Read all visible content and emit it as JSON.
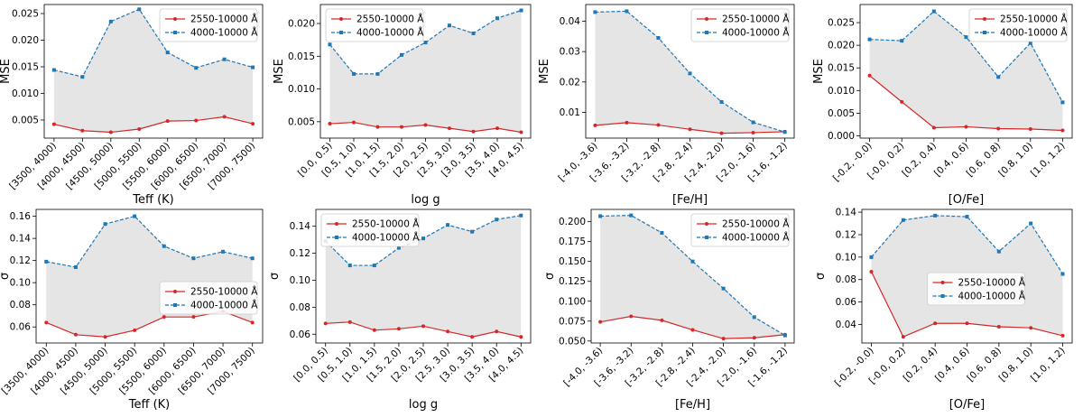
{
  "colors": {
    "red": "#d62728",
    "blue": "#1f77b4",
    "fill": "#e5e5e5",
    "frame": "#000000"
  },
  "chart_data": [
    {
      "type": "line",
      "xlabel": "Teff (K)",
      "ylabel": "MSE",
      "categories": [
        "[3500, 4000)",
        "[4000, 4500)",
        "[4500, 5000)",
        "[5000, 5500)",
        "[5500, 6000)",
        "[6000, 6500)",
        "[6500, 7000)",
        "[7000, 7500)"
      ],
      "series": [
        {
          "name": "2550-10000 Å",
          "values": [
            0.0042,
            0.003,
            0.0027,
            0.0033,
            0.0048,
            0.0049,
            0.0056,
            0.0043
          ]
        },
        {
          "name": "4000-10000 Å",
          "values": [
            0.0144,
            0.0131,
            0.0235,
            0.0258,
            0.0177,
            0.0148,
            0.0164,
            0.0149
          ]
        }
      ],
      "ylim": [
        0.0016,
        0.0267
      ],
      "yticks": [
        0.005,
        0.01,
        0.015,
        0.02,
        0.025
      ],
      "ytick_labels": [
        "0.005",
        "0.010",
        "0.015",
        "0.020",
        "0.025"
      ],
      "legend": "top-right"
    },
    {
      "type": "line",
      "xlabel": "log g",
      "ylabel": "MSE",
      "categories": [
        "[0.0, 0.5)",
        "[0.5, 1.0)",
        "[1.0, 1.5)",
        "[1.5, 2.0)",
        "[2.0, 2.5)",
        "[2.5, 3.0)",
        "[3.0, 3.5)",
        "[3.5, 4.0)",
        "[4.0, 4.5)"
      ],
      "series": [
        {
          "name": "2550-10000 Å",
          "values": [
            0.0047,
            0.0049,
            0.0042,
            0.0042,
            0.0045,
            0.004,
            0.0035,
            0.004,
            0.0034
          ]
        },
        {
          "name": "4000-10000 Å",
          "values": [
            0.0168,
            0.0123,
            0.0123,
            0.0152,
            0.0171,
            0.0197,
            0.0185,
            0.0208,
            0.022
          ]
        }
      ],
      "ylim": [
        0.0025,
        0.0229
      ],
      "yticks": [
        0.005,
        0.01,
        0.015,
        0.02
      ],
      "ytick_labels": [
        "0.005",
        "0.010",
        "0.015",
        "0.020"
      ],
      "legend": "top-left"
    },
    {
      "type": "line",
      "xlabel": "[Fe/H]",
      "ylabel": "MSE",
      "categories": [
        "[-4.0, -3.6)",
        "[-3.6, -3.2)",
        "[-3.2, -2.8)",
        "[-2.8, -2.4)",
        "[-2.4, -2.0)",
        "[-2.0, -1.6)",
        "[-1.6, -1.2)"
      ],
      "series": [
        {
          "name": "2550-10000 Å",
          "values": [
            0.0057,
            0.0066,
            0.0058,
            0.0044,
            0.0031,
            0.0033,
            0.0036
          ]
        },
        {
          "name": "4000-10000 Å",
          "values": [
            0.043,
            0.0433,
            0.0345,
            0.0228,
            0.0134,
            0.0067,
            0.0035
          ]
        }
      ],
      "ylim": [
        0.0015,
        0.0455
      ],
      "yticks": [
        0.01,
        0.02,
        0.03,
        0.04
      ],
      "ytick_labels": [
        "0.01",
        "0.02",
        "0.03",
        "0.04"
      ],
      "legend": "top-right"
    },
    {
      "type": "line",
      "xlabel": "[O/Fe]",
      "ylabel": "MSE",
      "categories": [
        "[-0.2, -0.0)",
        "[-0.0, 0.2)",
        "[0.2, 0.4)",
        "[0.4, 0.6)",
        "[0.6, 0.8)",
        "[0.8, 1.0)",
        "[1.0, 1.2)"
      ],
      "series": [
        {
          "name": "2550-10000 Å",
          "values": [
            0.0133,
            0.0075,
            0.0018,
            0.002,
            0.0016,
            0.0015,
            0.0012
          ]
        },
        {
          "name": "4000-10000 Å",
          "values": [
            0.0213,
            0.021,
            0.0275,
            0.0218,
            0.013,
            0.0205,
            0.0074
          ]
        }
      ],
      "ylim": [
        -0.0005,
        0.029
      ],
      "yticks": [
        0.0,
        0.005,
        0.01,
        0.015,
        0.02,
        0.025
      ],
      "ytick_labels": [
        "0.000",
        "0.005",
        "0.010",
        "0.015",
        "0.020",
        "0.025"
      ],
      "legend": "top-right"
    },
    {
      "type": "line",
      "xlabel": "Teff (K)",
      "ylabel": "σ",
      "categories": [
        "[3500, 4000)",
        "[4000, 4500)",
        "[4500, 5000)",
        "[5000, 5500)",
        "[5500, 6000)",
        "[6000, 6500)",
        "[6500, 7000)",
        "[7000, 7500)"
      ],
      "series": [
        {
          "name": "2550-10000 Å",
          "values": [
            0.064,
            0.053,
            0.051,
            0.057,
            0.069,
            0.069,
            0.074,
            0.064
          ]
        },
        {
          "name": "4000-10000 Å",
          "values": [
            0.119,
            0.114,
            0.153,
            0.16,
            0.133,
            0.122,
            0.128,
            0.122
          ]
        }
      ],
      "ylim": [
        0.0455,
        0.1662
      ],
      "yticks": [
        0.06,
        0.08,
        0.1,
        0.12,
        0.14,
        0.16
      ],
      "ytick_labels": [
        "0.06",
        "0.08",
        "0.10",
        "0.12",
        "0.14",
        "0.16"
      ],
      "legend": "center-right"
    },
    {
      "type": "line",
      "xlabel": "log g",
      "ylabel": "σ",
      "categories": [
        "[0.0, 0.5)",
        "[0.5, 1.0)",
        "[1.0, 1.5)",
        "[1.5, 2.0)",
        "[2.0, 2.5)",
        "[2.5, 3.0)",
        "[3.0, 3.5)",
        "[3.5, 4.0)",
        "[4.0, 4.5)"
      ],
      "series": [
        {
          "name": "2550-10000 Å",
          "values": [
            0.068,
            0.069,
            0.063,
            0.064,
            0.066,
            0.062,
            0.058,
            0.062,
            0.058
          ]
        },
        {
          "name": "4000-10000 Å",
          "values": [
            0.129,
            0.111,
            0.111,
            0.124,
            0.131,
            0.141,
            0.136,
            0.145,
            0.148
          ]
        }
      ],
      "ylim": [
        0.0535,
        0.1525
      ],
      "yticks": [
        0.06,
        0.08,
        0.1,
        0.12,
        0.14
      ],
      "ytick_labels": [
        "0.06",
        "0.08",
        "0.10",
        "0.12",
        "0.14"
      ],
      "legend": "top-left"
    },
    {
      "type": "line",
      "xlabel": "[Fe/H]",
      "ylabel": "σ",
      "categories": [
        "[-4.0, -3.6)",
        "[-3.6, -3.2)",
        "[-3.2, -2.8)",
        "[-2.8, -2.4)",
        "[-2.4, -2.0)",
        "[-2.0, -1.6)",
        "[-1.6, -1.2)"
      ],
      "series": [
        {
          "name": "2550-10000 Å",
          "values": [
            0.074,
            0.081,
            0.076,
            0.064,
            0.053,
            0.054,
            0.058
          ]
        },
        {
          "name": "4000-10000 Å",
          "values": [
            0.207,
            0.208,
            0.186,
            0.15,
            0.116,
            0.08,
            0.057
          ]
        }
      ],
      "ylim": [
        0.0475,
        0.2155
      ],
      "yticks": [
        0.05,
        0.075,
        0.1,
        0.125,
        0.15,
        0.175,
        0.2
      ],
      "ytick_labels": [
        "0.050",
        "0.075",
        "0.100",
        "0.125",
        "0.150",
        "0.175",
        "0.200"
      ],
      "legend": "top-right"
    },
    {
      "type": "line",
      "xlabel": "[O/Fe]",
      "ylabel": "σ",
      "categories": [
        "[-0.2, -0.0)",
        "[-0.0, 0.2)",
        "[0.2, 0.4)",
        "[0.4, 0.6)",
        "[0.6, 0.8)",
        "[0.8, 1.0)",
        "[1.0, 1.2)"
      ],
      "series": [
        {
          "name": "2550-10000 Å",
          "values": [
            0.087,
            0.029,
            0.041,
            0.041,
            0.038,
            0.037,
            0.03
          ]
        },
        {
          "name": "4000-10000 Å",
          "values": [
            0.1,
            0.133,
            0.137,
            0.136,
            0.105,
            0.13,
            0.085
          ]
        }
      ],
      "ylim": [
        0.0235,
        0.1425
      ],
      "yticks": [
        0.04,
        0.06,
        0.08,
        0.1,
        0.12,
        0.14
      ],
      "ytick_labels": [
        "0.04",
        "0.06",
        "0.08",
        "0.10",
        "0.12",
        "0.14"
      ],
      "legend": "center"
    }
  ]
}
